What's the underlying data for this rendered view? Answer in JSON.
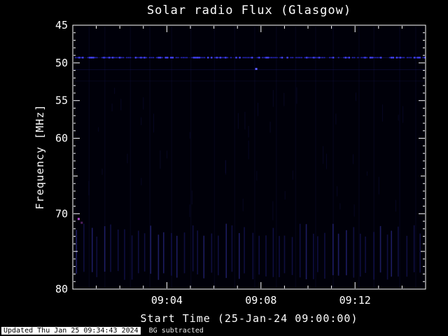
{
  "footer": {
    "updated": "Updated Thu Jan 25 09:34:43 2024",
    "bg_note": "BG subtracted"
  },
  "chart_data": {
    "type": "heatmap",
    "title": "Solar radio Flux (Glasgow)",
    "xlabel": "Start Time (25-Jan-24 09:00:00)",
    "ylabel": "Frequency [MHz]",
    "x_start_time": "09:00:00",
    "x_range_minutes": [
      0,
      15
    ],
    "x_ticks": [
      {
        "label": "09:04",
        "minutes": 4
      },
      {
        "label": "09:08",
        "minutes": 8
      },
      {
        "label": "09:12",
        "minutes": 12
      }
    ],
    "y_ticks": [
      45,
      50,
      55,
      60,
      70,
      80
    ],
    "ylim": [
      45,
      80
    ],
    "y_axis_inverted": true,
    "grid": false,
    "legend": false,
    "colors": {
      "page_bg": "#000000",
      "plot_bg": "#000009",
      "axis": "#ffffff",
      "faint_column": "rgba(18,18,80,0.20)",
      "faint_streak": "rgba(24,24,96,0.30)",
      "streak": "rgba(28,28,120,0.50)",
      "streak_bright": "rgba(45,45,150,0.62)"
    },
    "features": {
      "rfi_line": {
        "freq": 49.3,
        "base_color": "rgba(40,40,170,0.35)",
        "bright_color": "#4343ff",
        "dim_color": "#2626bb",
        "description": "persistent dotted narrowband interference line just above 50 MHz"
      },
      "faint_lines": [
        {
          "freq": 50.9,
          "color": "rgba(30,30,130,0.30)"
        },
        {
          "freq": 52.4,
          "color": "rgba(25,25,110,0.18)"
        }
      ],
      "points": [
        {
          "minutes": 7.8,
          "freq": 50.8,
          "color": "#5a5aff",
          "description": "blue point below RFI line near 09:08"
        },
        {
          "minutes": 0.25,
          "freq": 70.7,
          "color": "#b44cd0",
          "description": "magenta point near left edge ~70.5 MHz"
        },
        {
          "minutes": 0.38,
          "freq": 71.2,
          "color": "rgba(150,60,170,0.55)",
          "description": "dim magenta companion pixel"
        }
      ],
      "lower_band_streaks": {
        "freq_range": [
          71.3,
          78.8
        ],
        "period_minutes": 0.285,
        "count": 52,
        "description": "periodic faint vertical streaks across bottom band"
      }
    }
  }
}
